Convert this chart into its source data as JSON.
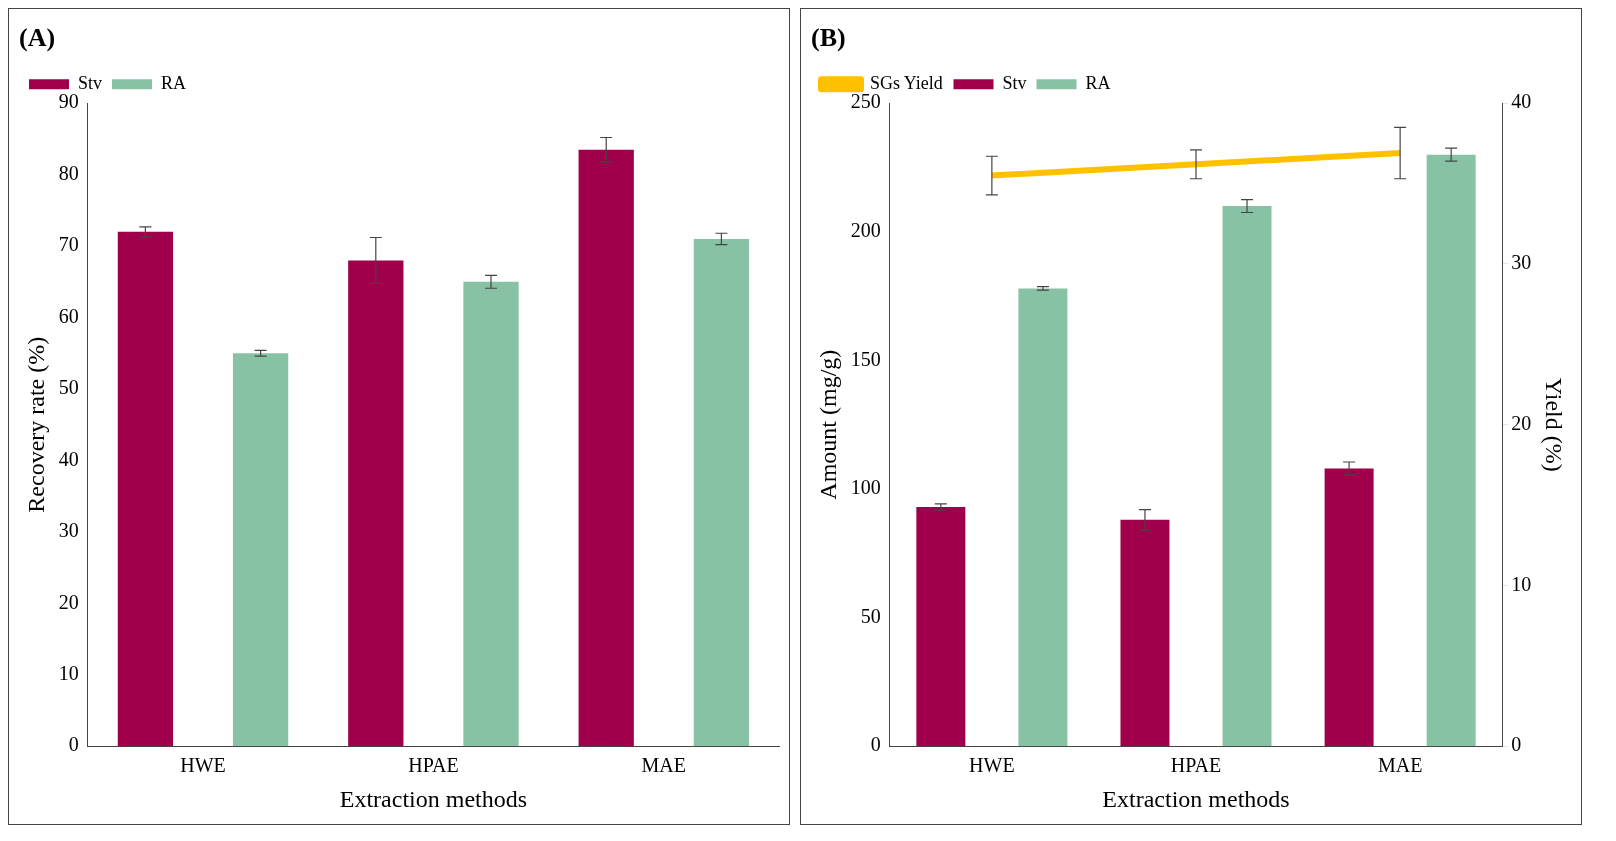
{
  "chart_data": [
    {
      "type": "bar",
      "title": "(A)",
      "xlabel": "Extraction methods",
      "ylabel": "Recovery rate (%)",
      "categories": [
        "HWE",
        "HPAE",
        "MAE"
      ],
      "series": [
        {
          "name": "Stv",
          "color": "#a0004b",
          "values": [
            72,
            68,
            83.5
          ],
          "errors": [
            0.7,
            3.2,
            1.7
          ]
        },
        {
          "name": "RA",
          "color": "#88c2a4",
          "values": [
            55,
            65,
            71
          ],
          "errors": [
            0.4,
            0.9,
            0.8
          ]
        }
      ],
      "ylim": [
        0,
        90
      ],
      "yticks": [
        0,
        10,
        20,
        30,
        40,
        50,
        60,
        70,
        80,
        90
      ],
      "grid": false,
      "legend": "top left"
    },
    {
      "type": "bar",
      "title": "(B)",
      "xlabel": "Extraction methods",
      "ylabel": "Amount (mg/g)",
      "y2label": "Yield (%)",
      "categories": [
        "HWE",
        "HPAE",
        "MAE"
      ],
      "series": [
        {
          "name": "Stv",
          "color": "#a0004b",
          "values": [
            93,
            88,
            108
          ],
          "errors": [
            1.2,
            4,
            2.5
          ]
        },
        {
          "name": "RA",
          "color": "#88c2a4",
          "values": [
            178,
            210,
            230
          ],
          "errors": [
            0.7,
            2.5,
            2.5
          ]
        },
        {
          "name": "SGs Yield",
          "color": "#ffc000",
          "type": "line",
          "axis": "y2",
          "values": [
            35.5,
            36.2,
            36.9
          ],
          "errors": [
            1.2,
            0.9,
            1.6
          ]
        }
      ],
      "ylim": [
        0,
        250
      ],
      "yticks": [
        0,
        50,
        100,
        150,
        200,
        250
      ],
      "y2lim": [
        0,
        40
      ],
      "y2ticks": [
        0,
        10,
        20,
        30,
        40
      ],
      "grid": false,
      "legend": "top left",
      "marker": "none",
      "line_style": "solid"
    }
  ]
}
